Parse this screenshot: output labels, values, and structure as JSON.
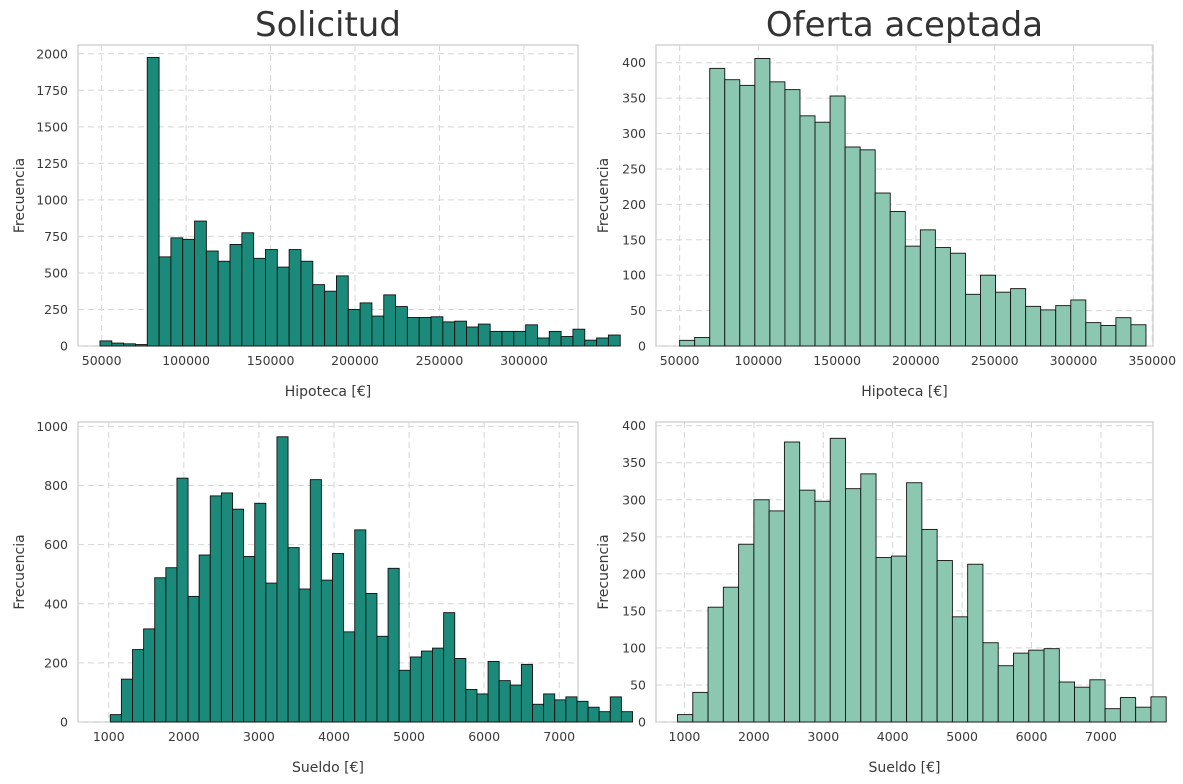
{
  "chart_data": [
    {
      "type": "bar",
      "title": "Solicitud",
      "xlabel": "Hipoteca [€]",
      "ylabel": "Frecuencia",
      "xlim": [
        36000,
        332000
      ],
      "ylim": [
        0,
        2060
      ],
      "xticks": [
        50000,
        100000,
        150000,
        200000,
        250000,
        300000
      ],
      "yticks": [
        0,
        250,
        500,
        750,
        1000,
        1250,
        1500,
        1750,
        2000
      ],
      "grid": true,
      "color": "#1b8a7a",
      "bin_start": 49000,
      "bin_width": 7000,
      "values": [
        35,
        20,
        15,
        10,
        1975,
        610,
        740,
        730,
        855,
        650,
        580,
        695,
        775,
        600,
        660,
        540,
        660,
        580,
        420,
        375,
        480,
        250,
        295,
        205,
        350,
        270,
        195,
        195,
        200,
        165,
        170,
        130,
        150,
        100,
        100,
        100,
        145,
        55,
        100,
        65,
        115,
        40,
        55,
        75
      ]
    },
    {
      "type": "bar",
      "title": "Oferta aceptada",
      "xlabel": "Hipoteca [€]",
      "ylabel": "Frecuencia",
      "xlim": [
        35000,
        350500
      ],
      "ylim": [
        0,
        425
      ],
      "xticks": [
        50000,
        100000,
        150000,
        200000,
        250000,
        300000,
        350000
      ],
      "yticks": [
        0,
        50,
        100,
        150,
        200,
        250,
        300,
        350,
        400
      ],
      "grid": true,
      "color": "#8cc7b1",
      "bin_start": 50000,
      "bin_width": 9550,
      "values": [
        8,
        12,
        392,
        376,
        368,
        406,
        373,
        362,
        325,
        316,
        353,
        281,
        277,
        216,
        190,
        141,
        164,
        139,
        131,
        73,
        100,
        76,
        81,
        56,
        51,
        57,
        65,
        33,
        29,
        40,
        30
      ]
    },
    {
      "type": "bar",
      "title": "",
      "xlabel": "Sueldo [€]",
      "ylabel": "Frecuencia",
      "xlim": [
        590,
        7250
      ],
      "ylim": [
        0,
        1015
      ],
      "xticks": [
        1000,
        2000,
        3000,
        4000,
        5000,
        6000,
        7000
      ],
      "yticks": [
        0,
        200,
        400,
        600,
        800,
        1000
      ],
      "grid": true,
      "color": "#1b8a7a",
      "bin_start": 1020,
      "bin_width": 148,
      "values": [
        25,
        145,
        245,
        315,
        488,
        522,
        825,
        425,
        565,
        765,
        775,
        720,
        560,
        740,
        470,
        965,
        590,
        450,
        820,
        480,
        570,
        305,
        650,
        435,
        290,
        520,
        175,
        220,
        240,
        250,
        370,
        215,
        110,
        95,
        205,
        140,
        125,
        195,
        60,
        95,
        75,
        85,
        70,
        50,
        35,
        85,
        35
      ]
    },
    {
      "type": "bar",
      "title": "",
      "xlabel": "Sueldo [€]",
      "ylabel": "Frecuencia",
      "xlim": [
        590,
        7750
      ],
      "ylim": [
        0,
        405
      ],
      "xticks": [
        1000,
        2000,
        3000,
        4000,
        5000,
        6000,
        7000
      ],
      "yticks": [
        0,
        50,
        100,
        150,
        200,
        250,
        300,
        350,
        400
      ],
      "grid": true,
      "color": "#8cc7b1",
      "bin_start": 900,
      "bin_width": 220,
      "values": [
        10,
        40,
        155,
        182,
        240,
        300,
        285,
        378,
        313,
        298,
        383,
        315,
        335,
        222,
        224,
        323,
        260,
        218,
        142,
        213,
        107,
        76,
        93,
        97,
        99,
        54,
        47,
        57,
        18,
        33,
        20,
        34
      ]
    }
  ]
}
